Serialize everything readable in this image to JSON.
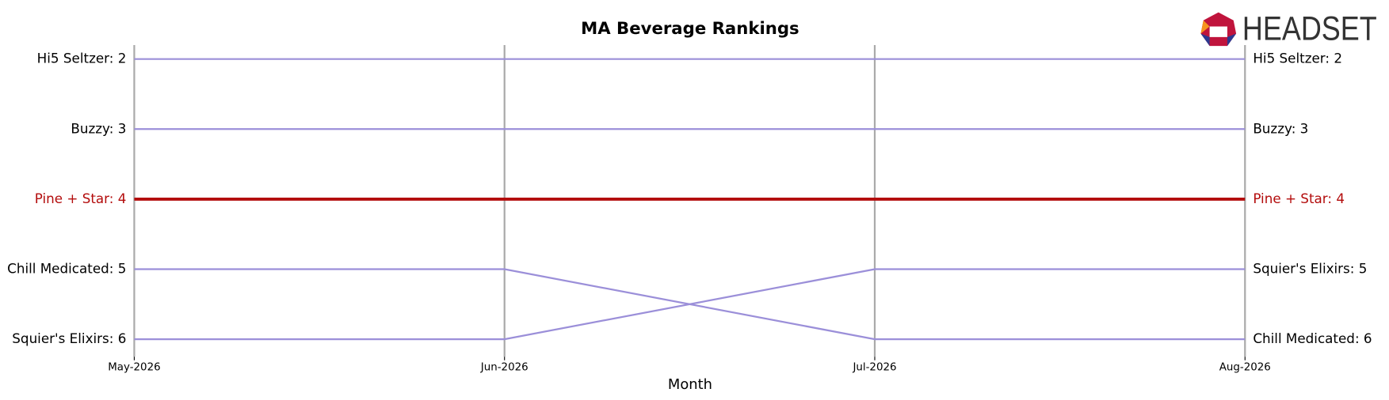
{
  "logo": "HEADSET",
  "chart_data": {
    "type": "bump",
    "title": "MA Beverage Rankings",
    "x_label": "Month",
    "categories": [
      "May-2026",
      "Jun-2026",
      "Jul-2026",
      "Aug-2026"
    ],
    "ylim": [
      6.25,
      1.8
    ],
    "grid": true,
    "series": [
      {
        "name": "Hi5 Seltzer",
        "color": "#9b8fd9",
        "label_color": "#000000",
        "values": [
          2,
          2,
          2,
          2
        ],
        "start_label": "Hi5 Seltzer: 2",
        "end_label": "Hi5 Seltzer: 2"
      },
      {
        "name": "Buzzy",
        "color": "#9b8fd9",
        "label_color": "#000000",
        "values": [
          3,
          3,
          3,
          3
        ],
        "start_label": "Buzzy: 3",
        "end_label": "Buzzy: 3"
      },
      {
        "name": "Pine + Star",
        "color": "#b30c0c",
        "label_color": "#b30c0c",
        "values": [
          4,
          4,
          4,
          4
        ],
        "start_label": "Pine + Star: 4",
        "end_label": "Pine + Star: 4"
      },
      {
        "name": "Chill Medicated",
        "color": "#9b8fd9",
        "label_color": "#000000",
        "values": [
          5,
          5,
          6,
          6
        ],
        "start_label": "Chill Medicated: 5",
        "end_label": "Chill Medicated: 6"
      },
      {
        "name": "Squier's Elixirs",
        "color": "#9b8fd9",
        "label_color": "#000000",
        "values": [
          6,
          6,
          5,
          5
        ],
        "start_label": "Squier's Elixirs: 6",
        "end_label": "Squier's Elixirs: 5"
      }
    ]
  }
}
